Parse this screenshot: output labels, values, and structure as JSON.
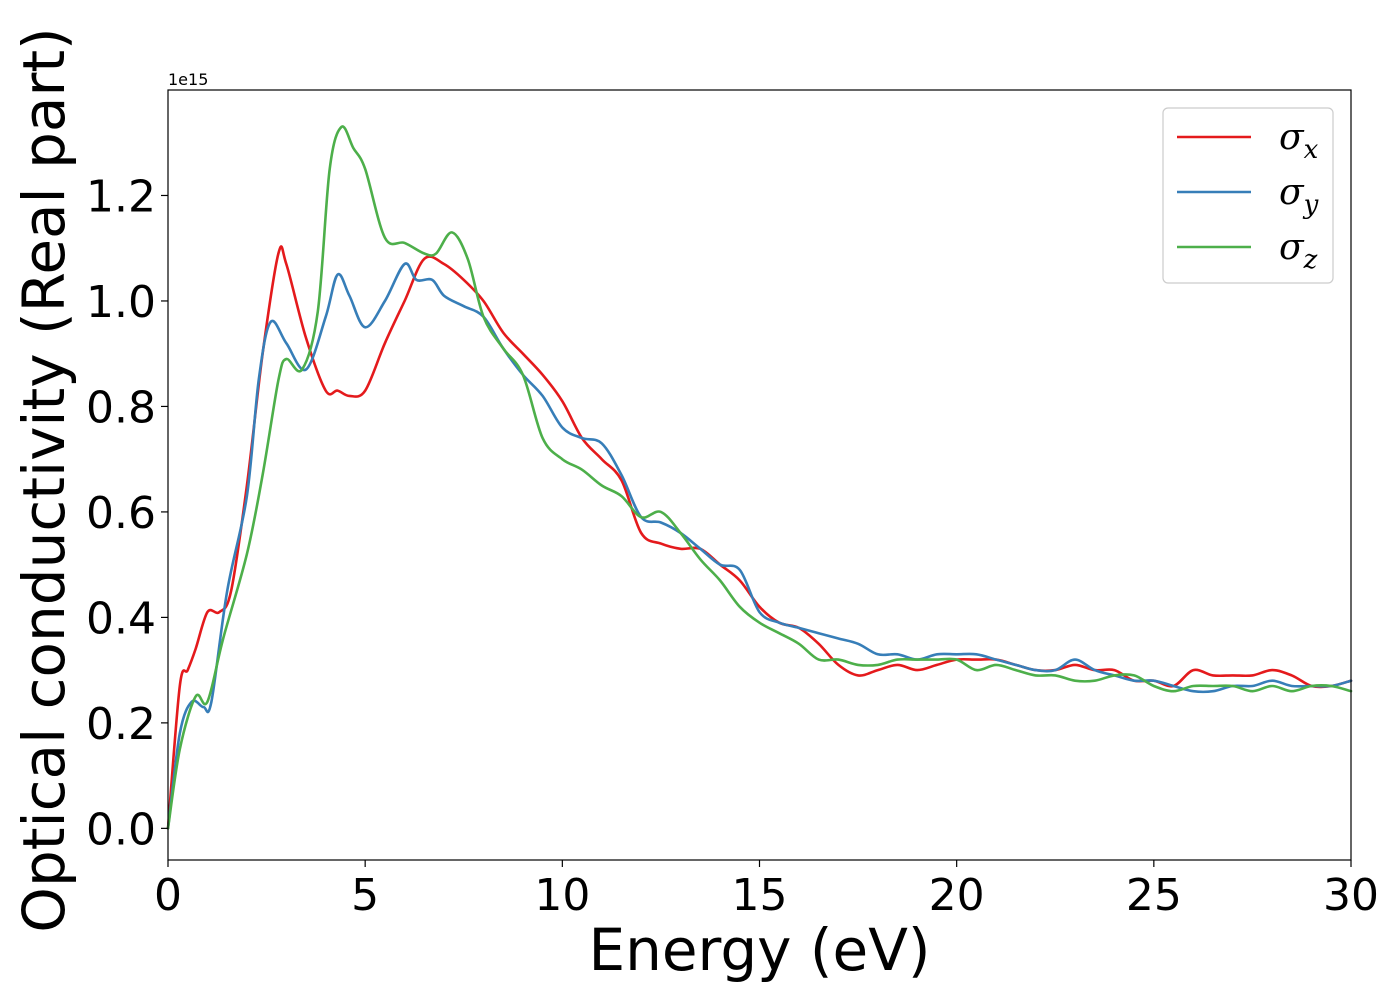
{
  "chart_data": {
    "type": "line",
    "xlabel": "Energy (eV)",
    "ylabel": "Optical conductivity (Real part)",
    "y_offset_text": "1e15",
    "xlim": [
      0,
      30
    ],
    "ylim": [
      -0.06,
      1.4
    ],
    "x_ticks": [
      0,
      5,
      10,
      15,
      20,
      25,
      30
    ],
    "x_tick_labels": [
      "0",
      "5",
      "10",
      "15",
      "20",
      "25",
      "30"
    ],
    "y_ticks": [
      0.0,
      0.2,
      0.4,
      0.6,
      0.8,
      1.0,
      1.2
    ],
    "y_tick_labels": [
      "0.0",
      "0.2",
      "0.4",
      "0.6",
      "0.8",
      "1.0",
      "1.2"
    ],
    "grid": false,
    "legend_position": "top-right",
    "series": [
      {
        "name": "σx",
        "symbol": "σ",
        "subscript": "x",
        "color": "#e41a1c",
        "x": [
          0,
          0.3,
          0.5,
          0.7,
          1.0,
          1.3,
          1.6,
          2.0,
          2.4,
          2.8,
          3.0,
          3.5,
          4.0,
          4.3,
          4.6,
          5.0,
          5.5,
          6.0,
          6.5,
          7.0,
          7.5,
          8.0,
          8.5,
          9.0,
          9.5,
          10.0,
          10.5,
          11.0,
          11.5,
          12.0,
          12.5,
          13.0,
          13.5,
          14.0,
          14.5,
          15.0,
          15.5,
          16.0,
          16.5,
          17.0,
          17.5,
          18.0,
          18.5,
          19.0,
          19.5,
          20.0,
          20.5,
          21.0,
          21.5,
          22.0,
          22.5,
          23.0,
          23.5,
          24.0,
          24.5,
          25.0,
          25.5,
          26.0,
          26.5,
          27.0,
          27.5,
          28.0,
          28.5,
          29.0,
          29.5,
          30.0
        ],
        "y": [
          0.0,
          0.27,
          0.3,
          0.34,
          0.41,
          0.41,
          0.45,
          0.65,
          0.9,
          1.09,
          1.07,
          0.93,
          0.83,
          0.83,
          0.82,
          0.83,
          0.92,
          1.0,
          1.08,
          1.07,
          1.04,
          1.0,
          0.94,
          0.9,
          0.86,
          0.81,
          0.74,
          0.7,
          0.66,
          0.56,
          0.54,
          0.53,
          0.53,
          0.5,
          0.47,
          0.42,
          0.39,
          0.38,
          0.35,
          0.31,
          0.29,
          0.3,
          0.31,
          0.3,
          0.31,
          0.32,
          0.32,
          0.32,
          0.31,
          0.3,
          0.3,
          0.31,
          0.3,
          0.3,
          0.28,
          0.28,
          0.27,
          0.3,
          0.29,
          0.29,
          0.29,
          0.3,
          0.29,
          0.27,
          0.27,
          0.28
        ]
      },
      {
        "name": "σy",
        "symbol": "σ",
        "subscript": "y",
        "color": "#377eb8",
        "x": [
          0,
          0.3,
          0.6,
          0.9,
          1.1,
          1.5,
          2.0,
          2.3,
          2.6,
          3.0,
          3.5,
          4.0,
          4.3,
          4.6,
          5.0,
          5.5,
          6.0,
          6.3,
          6.7,
          7.0,
          7.5,
          8.0,
          8.5,
          9.0,
          9.5,
          10.0,
          10.5,
          11.0,
          11.5,
          12.0,
          12.5,
          13.0,
          13.5,
          14.0,
          14.5,
          15.0,
          15.5,
          16.0,
          16.5,
          17.0,
          17.5,
          18.0,
          18.5,
          19.0,
          19.5,
          20.0,
          20.5,
          21.0,
          21.5,
          22.0,
          22.5,
          23.0,
          23.5,
          24.0,
          24.5,
          25.0,
          25.5,
          26.0,
          26.5,
          27.0,
          27.5,
          28.0,
          28.5,
          29.0,
          29.5,
          30.0
        ],
        "y": [
          0.0,
          0.18,
          0.24,
          0.23,
          0.24,
          0.45,
          0.63,
          0.85,
          0.96,
          0.92,
          0.87,
          0.97,
          1.05,
          1.01,
          0.95,
          1.0,
          1.07,
          1.04,
          1.04,
          1.01,
          0.99,
          0.97,
          0.91,
          0.86,
          0.82,
          0.76,
          0.74,
          0.73,
          0.67,
          0.59,
          0.58,
          0.56,
          0.53,
          0.5,
          0.49,
          0.41,
          0.39,
          0.38,
          0.37,
          0.36,
          0.35,
          0.33,
          0.33,
          0.32,
          0.33,
          0.33,
          0.33,
          0.32,
          0.31,
          0.3,
          0.3,
          0.32,
          0.3,
          0.29,
          0.28,
          0.28,
          0.27,
          0.26,
          0.26,
          0.27,
          0.27,
          0.28,
          0.27,
          0.27,
          0.27,
          0.28
        ]
      },
      {
        "name": "σz",
        "symbol": "σ",
        "subscript": "z",
        "color": "#4daf4a",
        "x": [
          0,
          0.3,
          0.7,
          1.0,
          1.4,
          2.0,
          2.4,
          2.8,
          3.0,
          3.4,
          3.8,
          4.1,
          4.4,
          4.7,
          5.0,
          5.5,
          6.0,
          6.5,
          6.8,
          7.2,
          7.6,
          8.0,
          8.5,
          9.0,
          9.5,
          10.0,
          10.5,
          11.0,
          11.5,
          12.0,
          12.5,
          13.0,
          13.5,
          14.0,
          14.5,
          15.0,
          15.5,
          16.0,
          16.5,
          17.0,
          17.5,
          18.0,
          18.5,
          19.0,
          19.5,
          20.0,
          20.5,
          21.0,
          21.5,
          22.0,
          22.5,
          23.0,
          23.5,
          24.0,
          24.5,
          25.0,
          25.5,
          26.0,
          26.5,
          27.0,
          27.5,
          28.0,
          28.5,
          29.0,
          29.5,
          30.0
        ],
        "y": [
          0.0,
          0.15,
          0.25,
          0.24,
          0.36,
          0.52,
          0.67,
          0.85,
          0.89,
          0.87,
          0.98,
          1.25,
          1.33,
          1.29,
          1.25,
          1.12,
          1.11,
          1.09,
          1.09,
          1.13,
          1.08,
          0.97,
          0.91,
          0.86,
          0.74,
          0.7,
          0.68,
          0.65,
          0.63,
          0.59,
          0.6,
          0.56,
          0.51,
          0.47,
          0.42,
          0.39,
          0.37,
          0.35,
          0.32,
          0.32,
          0.31,
          0.31,
          0.32,
          0.32,
          0.32,
          0.32,
          0.3,
          0.31,
          0.3,
          0.29,
          0.29,
          0.28,
          0.28,
          0.29,
          0.29,
          0.27,
          0.26,
          0.27,
          0.27,
          0.27,
          0.26,
          0.27,
          0.26,
          0.27,
          0.27,
          0.26
        ]
      }
    ]
  }
}
